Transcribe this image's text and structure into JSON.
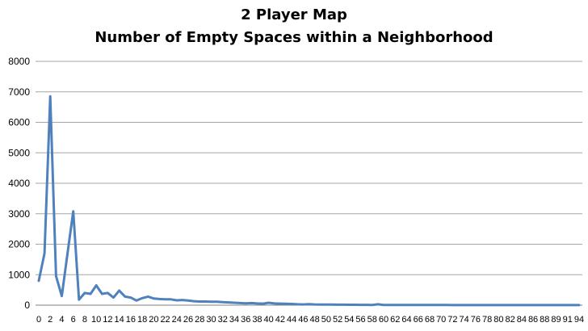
{
  "chart_data": {
    "type": "line",
    "title": "2 Player Map",
    "subtitle": "Number of Empty Spaces within a Neighborhood",
    "xlabel": "",
    "ylabel": "",
    "ylim": [
      0,
      8000
    ],
    "y_ticks": [
      0,
      1000,
      2000,
      3000,
      4000,
      5000,
      6000,
      7000,
      8000
    ],
    "x_tick_labels": [
      "0",
      "2",
      "4",
      "6",
      "8",
      "10",
      "12",
      "14",
      "16",
      "18",
      "20",
      "22",
      "24",
      "26",
      "28",
      "30",
      "32",
      "34",
      "36",
      "38",
      "40",
      "42",
      "44",
      "46",
      "48",
      "50",
      "52",
      "54",
      "56",
      "58",
      "60",
      "62",
      "64",
      "66",
      "68",
      "70",
      "72",
      "74",
      "76",
      "78",
      "80",
      "82",
      "84",
      "86",
      "88",
      "89",
      "91",
      "94"
    ],
    "grid": true,
    "legend": "none",
    "color": "#4F81BD",
    "x": [
      0,
      1,
      2,
      3,
      4,
      5,
      6,
      7,
      8,
      9,
      10,
      11,
      12,
      13,
      14,
      15,
      16,
      17,
      18,
      19,
      20,
      21,
      22,
      23,
      24,
      25,
      26,
      27,
      28,
      29,
      30,
      31,
      32,
      33,
      34,
      35,
      36,
      37,
      38,
      39,
      40,
      41,
      42,
      43,
      44,
      45,
      46,
      47,
      48,
      49,
      50,
      51,
      52,
      53,
      54,
      55,
      56,
      57,
      58,
      59,
      60,
      61,
      62,
      63,
      64,
      65,
      66,
      67,
      68,
      69,
      70,
      71,
      72,
      73,
      74,
      75,
      76,
      77,
      78,
      79,
      80,
      81,
      82,
      83,
      84,
      85,
      86,
      87,
      88,
      89,
      90,
      91,
      92,
      93,
      94
    ],
    "values": [
      800,
      1700,
      6850,
      950,
      300,
      1700,
      3080,
      180,
      400,
      370,
      650,
      370,
      400,
      250,
      480,
      280,
      250,
      150,
      230,
      280,
      220,
      200,
      190,
      190,
      160,
      170,
      150,
      130,
      120,
      120,
      110,
      115,
      100,
      90,
      80,
      70,
      60,
      70,
      55,
      50,
      80,
      55,
      50,
      45,
      40,
      30,
      25,
      35,
      25,
      20,
      20,
      18,
      15,
      15,
      12,
      12,
      10,
      10,
      8,
      30,
      8,
      8,
      6,
      6,
      5,
      5,
      5,
      5,
      4,
      4,
      4,
      4,
      3,
      3,
      3,
      3,
      3,
      3,
      3,
      3,
      2,
      2,
      2,
      2,
      2,
      2,
      2,
      2,
      2,
      2,
      2,
      2,
      2,
      2,
      2
    ]
  }
}
